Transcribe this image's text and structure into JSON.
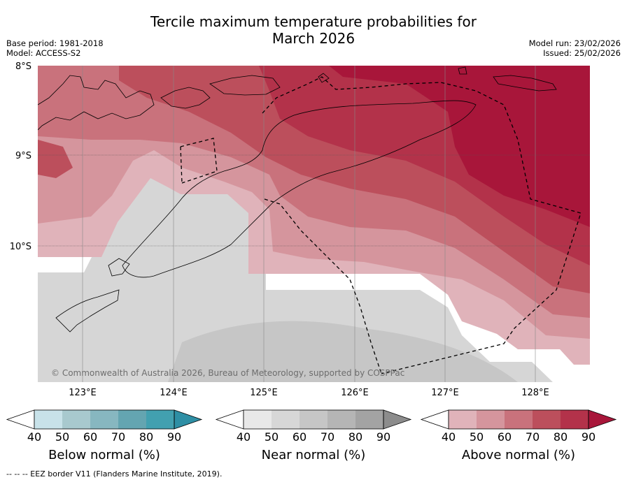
{
  "title_line1": "Tercile maximum temperature probabilities for",
  "title_line2": "March 2026",
  "meta": {
    "base_period": "Base period: 1981-2018",
    "model": "Model: ACCESS-S2",
    "model_run": "Model run: 23/02/2026",
    "issued": "Issued: 25/02/2026"
  },
  "map": {
    "lat_labels": [
      "8°S",
      "9°S",
      "10°S"
    ],
    "lon_labels": [
      "123°E",
      "124°E",
      "125°E",
      "126°E",
      "127°E",
      "128°E"
    ],
    "copyright": "© Commonwealth of Australia 2026, Bureau of Meteorology, supported by COSPPac"
  },
  "colorbars": [
    {
      "title": "Below normal (%)",
      "ticks": [
        "40",
        "50",
        "60",
        "70",
        "80",
        "90"
      ],
      "colors": [
        "#c8e2e9",
        "#a8c9ce",
        "#87b7c0",
        "#64a5b1",
        "#42a0b0",
        "#2e8fa5"
      ]
    },
    {
      "title": "Near normal (%)",
      "ticks": [
        "40",
        "50",
        "60",
        "70",
        "80",
        "90"
      ],
      "colors": [
        "#e8e8e8",
        "#d7d7d7",
        "#c6c6c6",
        "#b5b5b5",
        "#a3a3a3",
        "#8c8c8c"
      ]
    },
    {
      "title": "Above normal (%)",
      "ticks": [
        "40",
        "50",
        "60",
        "70",
        "80",
        "90"
      ],
      "colors": [
        "#e0b3ba",
        "#d5959d",
        "#c9727c",
        "#bc4f5c",
        "#b3324a",
        "#a8163a"
      ]
    }
  ],
  "footer": "--  --  -- EEZ border V11 (Flanders Marine Institute, 2019)."
}
